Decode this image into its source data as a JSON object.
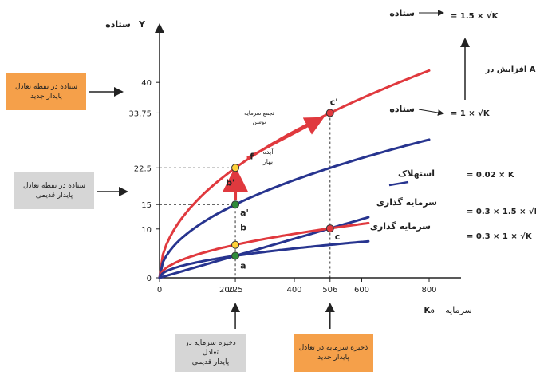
{
  "chart_data": {
    "type": "line",
    "y_axis_label": "ستاده",
    "y_axis_symbol": "Y",
    "x_axis_label": "سرمایه",
    "x_axis_symbol": "K₀",
    "xlim": [
      0,
      800
    ],
    "ylim": [
      0,
      50
    ],
    "x_ticks": [
      {
        "value": 0,
        "label": "0"
      },
      {
        "value": 200,
        "label": "200"
      },
      {
        "value": 225,
        "label": "225"
      },
      {
        "value": 400,
        "label": "400"
      },
      {
        "value": 506,
        "label": "506"
      },
      {
        "value": 600,
        "label": "600"
      },
      {
        "value": 800,
        "label": "800"
      }
    ],
    "y_ticks": [
      {
        "value": 0,
        "label": "0"
      },
      {
        "value": 10,
        "label": "10"
      },
      {
        "value": 15,
        "label": "15"
      },
      {
        "value": 22.5,
        "label": "22.5"
      },
      {
        "value": 33.75,
        "label": "33.75"
      },
      {
        "value": 40,
        "label": "40"
      }
    ],
    "series": [
      {
        "name": "ستاده",
        "formula": "= 1.5 × √K",
        "coef": 1.5,
        "color": "#e0393e",
        "x_end": 800
      },
      {
        "name": "ستاده",
        "formula": "= 1 × √K",
        "coef": 1.0,
        "color": "#27348f",
        "x_end": 800
      },
      {
        "name": "استهلاک",
        "formula": "= 0.02 × K",
        "coef": 0.02,
        "color": "#27348f",
        "x_end": 620
      },
      {
        "name": "سرمایه گذاری",
        "formula": "= 0.3 × 1.5 × √K",
        "coef": 0.45,
        "color": "#e0393e",
        "x_end": 620
      },
      {
        "name": "سرمایه گذاری",
        "formula": "= 0.3 × 1 × √K",
        "coef": 0.3,
        "color": "#27348f",
        "x_end": 620
      }
    ],
    "points": [
      {
        "label": "c'",
        "x": 506,
        "y": 33.75,
        "color": "#e0393e"
      },
      {
        "label": "b'",
        "x": 225,
        "y": 22.5,
        "color": "#ffd23a"
      },
      {
        "label": "a'",
        "x": 225,
        "y": 15,
        "color": "#2e8b3a"
      },
      {
        "label": "b",
        "x": 225,
        "y": 6.75,
        "color": "#ffd23a"
      },
      {
        "label": "a",
        "x": 225,
        "y": 4.5,
        "color": "#2e8b3a"
      },
      {
        "label": "c",
        "x": 506,
        "y": 10.12,
        "color": "#e0393e"
      }
    ],
    "annotations": {
      "increase_in_A": "افزایش در A",
      "f_label": "f",
      "accumulation_note": "تجمع سرمایه\nنوشن",
      "immediate_note": "آیده\nبهار"
    },
    "boxes": {
      "new_output": "ستاده در نقطه تعادل\nپایدار جدید",
      "old_output": "ستاده در نقطه تعادل\nپایدار قدیمی",
      "old_capital": "ذخیره سرمایه در تعادل\nپایدار قدیمی",
      "new_capital": "ذخیره سرمایه در تعادل\nپایدار جدید"
    },
    "grid": false,
    "legend": "right"
  }
}
